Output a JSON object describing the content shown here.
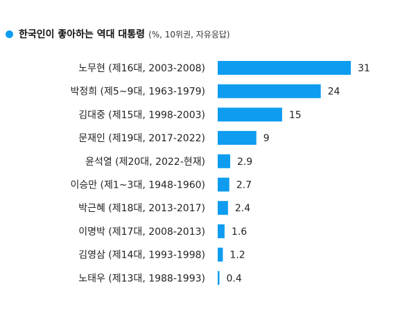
{
  "header": {
    "title": "한국인이 좋아하는 역대 대통령",
    "subtitle": "(%, 10위권, 자유응답)"
  },
  "colors": {
    "accent": "#0d9cf0",
    "label_text": "#222222"
  },
  "chart_data": {
    "type": "bar",
    "orientation": "horizontal",
    "title": "한국인이 좋아하는 역대 대통령",
    "subtitle": "(%, 10위권, 자유응답)",
    "categories": [
      "노무현 (제16대, 2003-2008)",
      "박정희 (제5~9대, 1963-1979)",
      "김대중 (제15대, 1998-2003)",
      "문재인 (제19대, 2017-2022)",
      "윤석열 (제20대, 2022-현재)",
      "이승만 (제1~3대, 1948-1960)",
      "박근혜 (제18대, 2013-2017)",
      "이명박 (제17대, 2008-2013)",
      "김영삼 (제14대, 1993-1998)",
      "노태우 (제13대, 1988-1993)"
    ],
    "values": [
      31,
      24,
      15,
      9,
      2.9,
      2.7,
      2.4,
      1.6,
      1.2,
      0.4
    ],
    "value_labels": [
      "31",
      "24",
      "15",
      "9",
      "2.9",
      "2.7",
      "2.4",
      "1.6",
      "1.2",
      "0.4"
    ],
    "xlim": [
      0,
      31
    ],
    "grid": false,
    "legend": "none"
  }
}
